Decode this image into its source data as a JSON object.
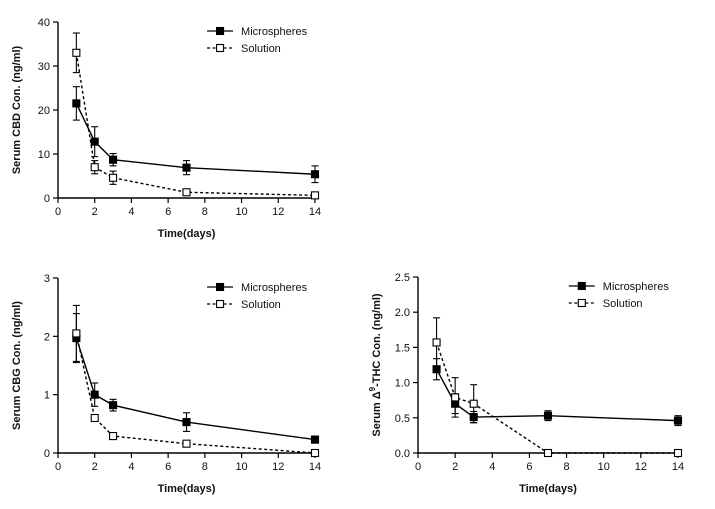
{
  "chart_data": [
    {
      "type": "line",
      "xlabel": "Time(days)",
      "ylabel": "Serum CBD Con. (ng/ml)",
      "xlim": [
        0,
        14
      ],
      "ylim": [
        0,
        40
      ],
      "xticks": [
        0,
        2,
        4,
        6,
        8,
        10,
        12,
        14
      ],
      "yticks": [
        0,
        10,
        20,
        30,
        40
      ],
      "grid": false,
      "legend": "top-right",
      "series": [
        {
          "name": "Microspheres",
          "marker": "filled-square",
          "line": "solid",
          "x": [
            1,
            2,
            3,
            7,
            14
          ],
          "y": [
            21.5,
            12.8,
            8.7,
            6.9,
            5.4
          ],
          "err": [
            3.8,
            3.4,
            1.4,
            1.6,
            1.9
          ]
        },
        {
          "name": "Solution",
          "marker": "open-square",
          "line": "dashed",
          "x": [
            1,
            2,
            3,
            7,
            14
          ],
          "y": [
            33.0,
            7.0,
            4.6,
            1.3,
            0.6
          ],
          "err": [
            4.5,
            1.5,
            1.5,
            0.3,
            0.2
          ]
        }
      ]
    },
    {
      "type": "line",
      "xlabel": "Time(days)",
      "ylabel": "Serum CBG Con. (ng/ml)",
      "xlim": [
        0,
        14
      ],
      "ylim": [
        0,
        3
      ],
      "xticks": [
        0,
        2,
        4,
        6,
        8,
        10,
        12,
        14
      ],
      "yticks": [
        0,
        1,
        2,
        3
      ],
      "grid": false,
      "legend": "top-right",
      "series": [
        {
          "name": "Microspheres",
          "marker": "filled-square",
          "line": "solid",
          "x": [
            1,
            2,
            3,
            7,
            14
          ],
          "y": [
            1.97,
            1.0,
            0.82,
            0.53,
            0.23
          ],
          "err": [
            0.42,
            0.2,
            0.1,
            0.16,
            0.06
          ]
        },
        {
          "name": "Solution",
          "marker": "open-square",
          "line": "dashed",
          "x": [
            1,
            2,
            3,
            7,
            14
          ],
          "y": [
            2.05,
            0.6,
            0.29,
            0.16,
            0.0
          ],
          "err": [
            0.48,
            0.05,
            0.02,
            0.02,
            0.0
          ]
        }
      ]
    },
    {
      "type": "line",
      "xlabel": "Time(days)",
      "ylabel": "Serum Δ9-THC Con. (ng/ml)",
      "ylabel_parts": {
        "pre": "Serum Δ",
        "sup": "9",
        "post": "-THC Con. (ng/ml)"
      },
      "xlim": [
        0,
        14
      ],
      "ylim": [
        0,
        2.5
      ],
      "xticks": [
        0,
        2,
        4,
        6,
        8,
        10,
        12,
        14
      ],
      "yticks": [
        "0.0",
        "0.5",
        "1.0",
        "1.5",
        "2.0",
        "2.5"
      ],
      "grid": false,
      "legend": "top-right",
      "series": [
        {
          "name": "Microspheres",
          "marker": "filled-square",
          "line": "solid",
          "x": [
            1,
            2,
            3,
            7,
            14
          ],
          "y": [
            1.19,
            0.7,
            0.51,
            0.53,
            0.46
          ],
          "err": [
            0.15,
            0.14,
            0.08,
            0.07,
            0.07
          ]
        },
        {
          "name": "Solution",
          "marker": "open-square",
          "line": "dashed",
          "x": [
            1,
            2,
            3,
            7,
            14
          ],
          "y": [
            1.57,
            0.79,
            0.7,
            0.0,
            0.0
          ],
          "err": [
            0.35,
            0.28,
            0.27,
            0.0,
            0.0
          ]
        }
      ]
    }
  ]
}
